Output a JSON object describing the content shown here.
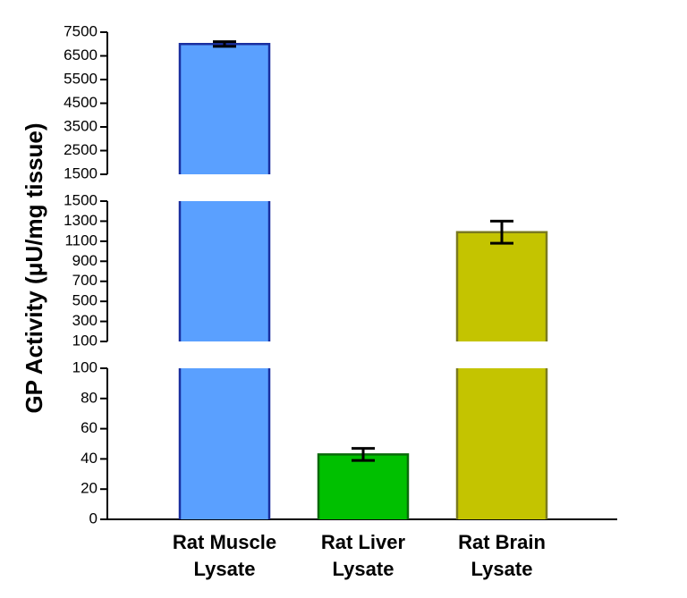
{
  "chart_data": {
    "type": "bar",
    "ylabel": "GP Activity (μU/mg tissue)",
    "categories": [
      [
        "Rat Muscle",
        "Lysate"
      ],
      [
        "Rat Liver",
        "Lysate"
      ],
      [
        "Rat Brain",
        "Lysate"
      ]
    ],
    "values": [
      7000,
      43,
      1190
    ],
    "errors": [
      100,
      4,
      110
    ],
    "colors": [
      "#5aa0ff",
      "#00c000",
      "#c4c400"
    ],
    "edge_colors": [
      "#1a2fa0",
      "#0a6a0a",
      "#7a7a20"
    ],
    "axis_segments": [
      {
        "ylim": [
          0,
          100
        ],
        "yticks": [
          0,
          20,
          40,
          60,
          80,
          100
        ]
      },
      {
        "ylim": [
          100,
          1500
        ],
        "yticks": [
          100,
          300,
          500,
          700,
          900,
          1100,
          1300,
          1500
        ]
      },
      {
        "ylim": [
          1500,
          7500
        ],
        "yticks": [
          1500,
          2500,
          3500,
          4500,
          5500,
          6500,
          7500
        ]
      }
    ]
  }
}
